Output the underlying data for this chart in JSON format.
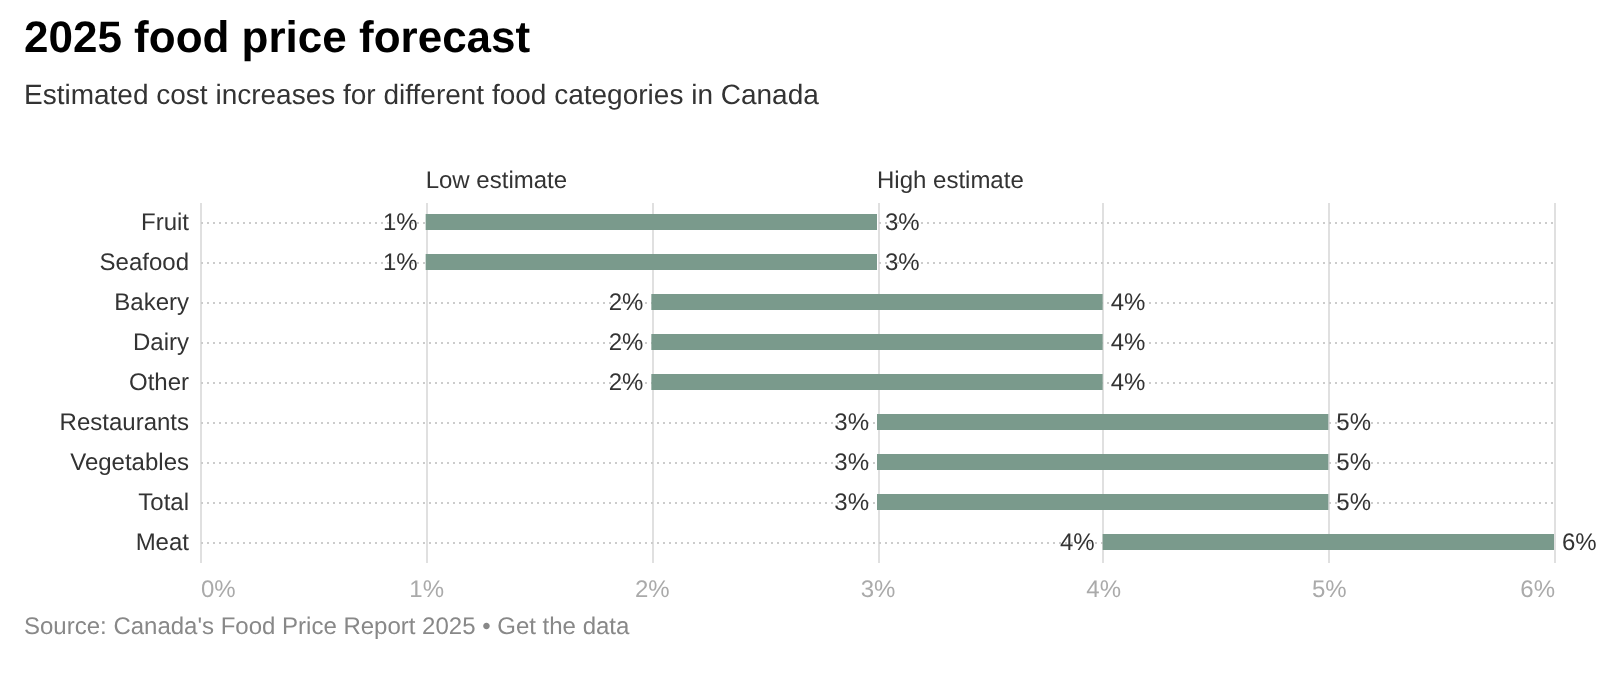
{
  "chart_data": {
    "type": "bar",
    "orientation": "horizontal",
    "title": "2025 food price forecast",
    "subtitle": "Estimated cost increases for different food categories in Canada",
    "categories": [
      "Fruit",
      "Seafood",
      "Bakery",
      "Dairy",
      "Other",
      "Restaurants",
      "Vegetables",
      "Total",
      "Meat"
    ],
    "base": [
      1,
      1,
      2,
      2,
      2,
      3,
      3,
      3,
      4
    ],
    "values": [
      2,
      2,
      2,
      2,
      2,
      2,
      2,
      2,
      2
    ],
    "color": "#7a9a8c",
    "xlim": [
      0,
      6
    ],
    "xticks": [
      {
        "value": 0,
        "label": "0%"
      },
      {
        "value": 1,
        "label": "1%"
      },
      {
        "value": 2,
        "label": "2%"
      },
      {
        "value": 3,
        "label": "3%"
      },
      {
        "value": 4,
        "label": "4%"
      },
      {
        "value": 5,
        "label": "5%"
      },
      {
        "value": 6,
        "label": "6%"
      }
    ],
    "grid": true,
    "annotations": [
      "Low estimate",
      "High estimate",
      {
        "text": "1%",
        "x": 1,
        "y": "Fruit"
      },
      {
        "text": "3%",
        "x": 3,
        "y": "Fruit"
      },
      {
        "text": "1%",
        "x": 1,
        "y": "Seafood"
      },
      {
        "text": "3%",
        "x": 3,
        "y": "Seafood"
      },
      {
        "text": "2%",
        "x": 2,
        "y": "Bakery"
      },
      {
        "text": "4%",
        "x": 4,
        "y": "Bakery"
      },
      {
        "text": "2%",
        "x": 2,
        "y": "Dairy"
      },
      {
        "text": "4%",
        "x": 4,
        "y": "Dairy"
      },
      {
        "text": "2%",
        "x": 2,
        "y": "Other"
      },
      {
        "text": "4%",
        "x": 4,
        "y": "Other"
      },
      {
        "text": "3%",
        "x": 3,
        "y": "Restaurants"
      },
      {
        "text": "5%",
        "x": 5,
        "y": "Restaurants"
      },
      {
        "text": "3%",
        "x": 3,
        "y": "Vegetables"
      },
      {
        "text": "5%",
        "x": 5,
        "y": "Vegetables"
      },
      {
        "text": "3%",
        "x": 3,
        "y": "Total"
      },
      {
        "text": "5%",
        "x": 5,
        "y": "Total"
      },
      {
        "text": "4%",
        "x": 4,
        "y": "Meat"
      },
      {
        "text": "6%",
        "x": 6,
        "y": "Meat"
      },
      "Source: Canada's Food Price Report 2025 • Get the data"
    ]
  }
}
